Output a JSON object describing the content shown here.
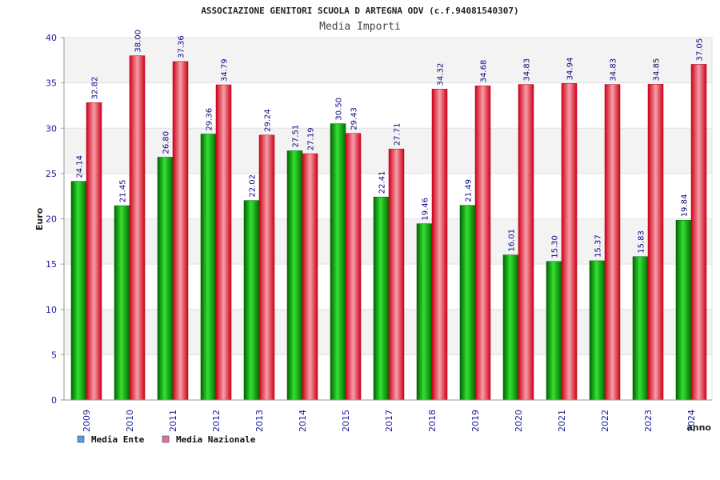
{
  "chart_data": {
    "type": "bar",
    "title": "ASSOCIAZIONE GENITORI SCUOLA D ARTEGNA ODV (c.f.94081540307)",
    "subtitle": "Media Importi",
    "ylabel": "Euro",
    "xlabel": "anno",
    "ylim": [
      0,
      40
    ],
    "yticks": [
      0,
      5,
      10,
      15,
      20,
      25,
      30,
      35,
      40
    ],
    "categories": [
      "2009",
      "2010",
      "2011",
      "2012",
      "2013",
      "2014",
      "2015",
      "2017",
      "2018",
      "2019",
      "2020",
      "2021",
      "2022",
      "2023",
      "2024"
    ],
    "series": [
      {
        "name": "Media Ente",
        "color": "#00b000",
        "legend_color": "#5a9be6",
        "values": [
          24.14,
          21.45,
          26.8,
          29.36,
          22.02,
          27.51,
          30.5,
          22.41,
          19.46,
          21.49,
          16.01,
          15.3,
          15.37,
          15.83,
          19.84
        ],
        "labels": [
          "24.14",
          "21.45",
          "26.80",
          "29.36",
          "22.02",
          "27.51",
          "30.50",
          "22.41",
          "19.46",
          "21.49",
          "16.01",
          "15.30",
          "15.37",
          "15.83",
          "19.84"
        ]
      },
      {
        "name": "Media Nazionale",
        "color": "#e8142a",
        "legend_color": "#e070a8",
        "values": [
          32.82,
          38.0,
          37.36,
          34.79,
          29.24,
          27.19,
          29.43,
          27.71,
          34.32,
          34.68,
          34.83,
          34.94,
          34.83,
          34.85,
          37.05
        ],
        "labels": [
          "32.82",
          "38.00",
          "37.36",
          "34.79",
          "29.24",
          "27.19",
          "29.43",
          "27.71",
          "34.32",
          "34.68",
          "34.83",
          "34.94",
          "34.83",
          "34.85",
          "37.05"
        ]
      }
    ],
    "grid": true,
    "legend_position": "bottom-left"
  }
}
